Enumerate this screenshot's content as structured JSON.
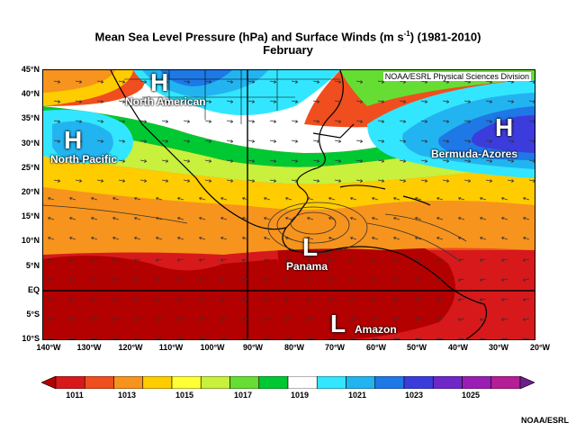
{
  "title": {
    "line1_main": "Mean Sea Level Pressure (hPa) and Surface Winds (m s",
    "line1_sup": "-1",
    "line1_end": ") (1981-2010)",
    "line2": "February"
  },
  "map_credit": "NOAA/ESRL Physical Sciences Division",
  "footer_credit": "NOAA/ESRL",
  "lat_labels": [
    "45°N",
    "40°N",
    "35°N",
    "30°N",
    "25°N",
    "20°N",
    "15°N",
    "10°N",
    "5°N",
    "EQ",
    "5°S",
    "10°S"
  ],
  "lon_labels": [
    "140°W",
    "130°W",
    "120°W",
    "110°W",
    "100°W",
    "90°W",
    "80°W",
    "70°W",
    "60°W",
    "50°W",
    "40°W",
    "30°W",
    "20°W"
  ],
  "pressure_centers": [
    {
      "letter": "H",
      "label": "North American"
    },
    {
      "letter": "H",
      "label": "North Pacific"
    },
    {
      "letter": "H",
      "label": "Bermuda-Azores"
    },
    {
      "letter": "L",
      "label": "Panama"
    },
    {
      "letter": "L",
      "label": "Amazon"
    }
  ],
  "colorbar": {
    "labels": [
      "1011",
      "1013",
      "1015",
      "1017",
      "1019",
      "1021",
      "1023",
      "1025"
    ],
    "colors": [
      "#b30000",
      "#d7191c",
      "#f04e1e",
      "#f7941d",
      "#ffcc00",
      "#ffff33",
      "#c8f03c",
      "#66dd33",
      "#00c832",
      "#ffffff",
      "#33e6ff",
      "#22b4f0",
      "#1e78e6",
      "#3c3cdc",
      "#6e28c8",
      "#9a1eb4",
      "#b41e96",
      "#6e1e8c"
    ]
  }
}
